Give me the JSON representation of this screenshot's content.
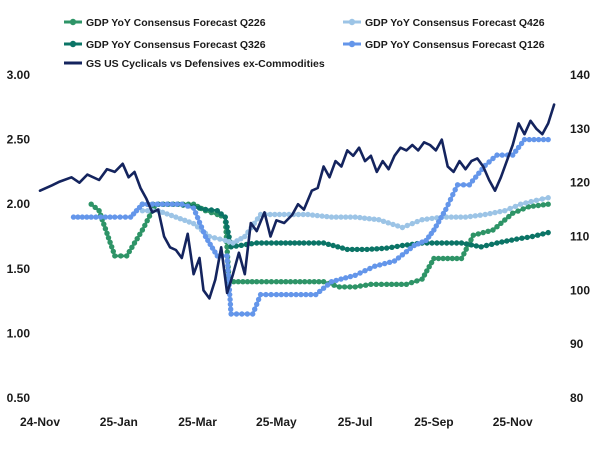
{
  "chart_data": {
    "type": "line",
    "title": "",
    "x_labels": [
      "24-Nov",
      "25-Jan",
      "25-Mar",
      "25-May",
      "25-Jul",
      "25-Sep",
      "25-Nov"
    ],
    "x_label_index": [
      0,
      2,
      4,
      6,
      8,
      10,
      12
    ],
    "x_range_months": [
      0,
      13.2
    ],
    "left_axis": {
      "ylim": [
        0.5,
        3.0
      ],
      "ticks": [
        "3.00",
        "2.50",
        "2.00",
        "1.50",
        "1.00",
        "0.50"
      ],
      "tick_values": [
        3.0,
        2.5,
        2.0,
        1.5,
        1.0,
        0.5
      ]
    },
    "right_axis": {
      "ylim": [
        80,
        140
      ],
      "ticks": [
        "140",
        "130",
        "120",
        "110",
        "100",
        "90",
        "80"
      ],
      "tick_values": [
        140,
        130,
        120,
        110,
        100,
        90,
        80
      ]
    },
    "series": [
      {
        "name": "GDP YoY Consensus Forecast  Q226",
        "color": "#2e9467",
        "axis": "left",
        "markers": true,
        "points": [
          [
            1.3,
            2.0
          ],
          [
            1.5,
            1.95
          ],
          [
            1.9,
            1.6
          ],
          [
            2.2,
            1.6
          ],
          [
            2.6,
            1.8
          ],
          [
            2.9,
            1.98
          ],
          [
            3.0,
            2.0
          ],
          [
            3.5,
            2.0
          ],
          [
            3.9,
            2.0
          ],
          [
            4.2,
            1.95
          ],
          [
            4.5,
            1.92
          ],
          [
            4.7,
            1.9
          ],
          [
            4.8,
            1.4
          ],
          [
            5.5,
            1.4
          ],
          [
            6.0,
            1.4
          ],
          [
            6.6,
            1.4
          ],
          [
            7.2,
            1.4
          ],
          [
            7.6,
            1.36
          ],
          [
            8.0,
            1.36
          ],
          [
            8.4,
            1.38
          ],
          [
            8.8,
            1.38
          ],
          [
            9.3,
            1.38
          ],
          [
            9.7,
            1.42
          ],
          [
            10.0,
            1.58
          ],
          [
            10.7,
            1.58
          ],
          [
            11.0,
            1.76
          ],
          [
            11.5,
            1.8
          ],
          [
            12.0,
            1.93
          ],
          [
            12.4,
            1.98
          ],
          [
            12.9,
            2.0
          ]
        ]
      },
      {
        "name": "GDP YoY Consensus Forecast  Q326",
        "color": "#0b7466",
        "axis": "left",
        "markers": true,
        "points": [
          [
            2.6,
            2.0
          ],
          [
            3.0,
            2.0
          ],
          [
            3.5,
            2.0
          ],
          [
            3.9,
            1.98
          ],
          [
            4.2,
            1.96
          ],
          [
            4.5,
            1.95
          ],
          [
            4.7,
            1.9
          ],
          [
            4.85,
            1.67
          ],
          [
            5.5,
            1.7
          ],
          [
            6.0,
            1.7
          ],
          [
            6.7,
            1.7
          ],
          [
            7.2,
            1.7
          ],
          [
            7.8,
            1.65
          ],
          [
            8.3,
            1.65
          ],
          [
            8.8,
            1.66
          ],
          [
            9.2,
            1.68
          ],
          [
            9.7,
            1.7
          ],
          [
            10.2,
            1.7
          ],
          [
            10.7,
            1.7
          ],
          [
            11.2,
            1.67
          ],
          [
            11.6,
            1.7
          ],
          [
            12.1,
            1.73
          ],
          [
            12.5,
            1.75
          ],
          [
            12.9,
            1.78
          ]
        ]
      },
      {
        "name": "GDP YoY Consensus Forecast  Q426",
        "color": "#9cc4e6",
        "axis": "left",
        "markers": true,
        "points": [
          [
            2.6,
            1.95
          ],
          [
            3.0,
            1.95
          ],
          [
            3.9,
            1.85
          ],
          [
            4.3,
            1.75
          ],
          [
            4.7,
            1.72
          ],
          [
            4.9,
            1.7
          ],
          [
            5.2,
            1.75
          ],
          [
            5.6,
            1.92
          ],
          [
            6.2,
            1.92
          ],
          [
            6.8,
            1.92
          ],
          [
            7.4,
            1.9
          ],
          [
            8.0,
            1.9
          ],
          [
            8.6,
            1.88
          ],
          [
            9.2,
            1.82
          ],
          [
            9.7,
            1.88
          ],
          [
            10.2,
            1.9
          ],
          [
            10.8,
            1.9
          ],
          [
            11.3,
            1.92
          ],
          [
            11.8,
            1.95
          ],
          [
            12.2,
            2.0
          ],
          [
            12.6,
            2.03
          ],
          [
            12.9,
            2.05
          ]
        ]
      },
      {
        "name": "GDP YoY Consensus Forecast  Q126",
        "color": "#6496ea",
        "axis": "left",
        "markers": true,
        "points": [
          [
            0.85,
            1.9
          ],
          [
            1.3,
            1.9
          ],
          [
            1.9,
            1.9
          ],
          [
            2.3,
            1.9
          ],
          [
            2.6,
            2.0
          ],
          [
            3.1,
            2.0
          ],
          [
            3.6,
            2.0
          ],
          [
            3.9,
            1.97
          ],
          [
            4.2,
            1.75
          ],
          [
            4.5,
            1.6
          ],
          [
            4.75,
            1.6
          ],
          [
            4.85,
            1.15
          ],
          [
            5.4,
            1.15
          ],
          [
            5.6,
            1.3
          ],
          [
            6.0,
            1.3
          ],
          [
            6.5,
            1.3
          ],
          [
            7.0,
            1.3
          ],
          [
            7.4,
            1.4
          ],
          [
            8.0,
            1.45
          ],
          [
            8.5,
            1.52
          ],
          [
            9.0,
            1.56
          ],
          [
            9.5,
            1.68
          ],
          [
            9.8,
            1.72
          ],
          [
            10.0,
            1.8
          ],
          [
            10.3,
            1.96
          ],
          [
            10.6,
            2.15
          ],
          [
            10.9,
            2.15
          ],
          [
            11.3,
            2.3
          ],
          [
            11.6,
            2.38
          ],
          [
            12.0,
            2.38
          ],
          [
            12.3,
            2.5
          ],
          [
            12.9,
            2.5
          ]
        ]
      },
      {
        "name": "GS US Cyclicals vs Defensives ex-Commodities",
        "color": "#14245e",
        "axis": "right",
        "markers": false,
        "points": [
          [
            0.0,
            118.5
          ],
          [
            0.3,
            119.5
          ],
          [
            0.5,
            120.2
          ],
          [
            0.8,
            121
          ],
          [
            1.0,
            120
          ],
          [
            1.2,
            121.5
          ],
          [
            1.5,
            120.5
          ],
          [
            1.7,
            122.5
          ],
          [
            1.9,
            122
          ],
          [
            2.1,
            123.5
          ],
          [
            2.25,
            121
          ],
          [
            2.4,
            122
          ],
          [
            2.55,
            119
          ],
          [
            2.7,
            117
          ],
          [
            2.85,
            114.5
          ],
          [
            3.0,
            115
          ],
          [
            3.15,
            110
          ],
          [
            3.3,
            108
          ],
          [
            3.45,
            107.5
          ],
          [
            3.6,
            106
          ],
          [
            3.75,
            110.5
          ],
          [
            3.9,
            103
          ],
          [
            4.05,
            106
          ],
          [
            4.15,
            100
          ],
          [
            4.3,
            98.5
          ],
          [
            4.45,
            102
          ],
          [
            4.6,
            108
          ],
          [
            4.75,
            99.5
          ],
          [
            4.9,
            103
          ],
          [
            5.05,
            107
          ],
          [
            5.2,
            103
          ],
          [
            5.35,
            112.5
          ],
          [
            5.5,
            111
          ],
          [
            5.7,
            114.5
          ],
          [
            5.85,
            110
          ],
          [
            6.0,
            113
          ],
          [
            6.2,
            112.5
          ],
          [
            6.4,
            114
          ],
          [
            6.55,
            116
          ],
          [
            6.7,
            115
          ],
          [
            6.9,
            118.5
          ],
          [
            7.05,
            119
          ],
          [
            7.2,
            123
          ],
          [
            7.35,
            121
          ],
          [
            7.5,
            124
          ],
          [
            7.65,
            123
          ],
          [
            7.8,
            126
          ],
          [
            7.95,
            125
          ],
          [
            8.1,
            126.5
          ],
          [
            8.25,
            124
          ],
          [
            8.4,
            125
          ],
          [
            8.55,
            122
          ],
          [
            8.7,
            124
          ],
          [
            8.85,
            122.5
          ],
          [
            9.0,
            125
          ],
          [
            9.15,
            126.5
          ],
          [
            9.3,
            126
          ],
          [
            9.45,
            127
          ],
          [
            9.6,
            126
          ],
          [
            9.75,
            127.5
          ],
          [
            9.9,
            127
          ],
          [
            10.05,
            126
          ],
          [
            10.2,
            128
          ],
          [
            10.35,
            123
          ],
          [
            10.5,
            122
          ],
          [
            10.65,
            124
          ],
          [
            10.8,
            122.5
          ],
          [
            10.95,
            124
          ],
          [
            11.1,
            124.5
          ],
          [
            11.25,
            123
          ],
          [
            11.4,
            120.5
          ],
          [
            11.55,
            118.5
          ],
          [
            11.7,
            121
          ],
          [
            11.85,
            124
          ],
          [
            12.0,
            127
          ],
          [
            12.15,
            131
          ],
          [
            12.3,
            129
          ],
          [
            12.45,
            131.5
          ],
          [
            12.6,
            130
          ],
          [
            12.75,
            129
          ],
          [
            12.9,
            131
          ],
          [
            13.05,
            134.5
          ]
        ]
      }
    ]
  }
}
